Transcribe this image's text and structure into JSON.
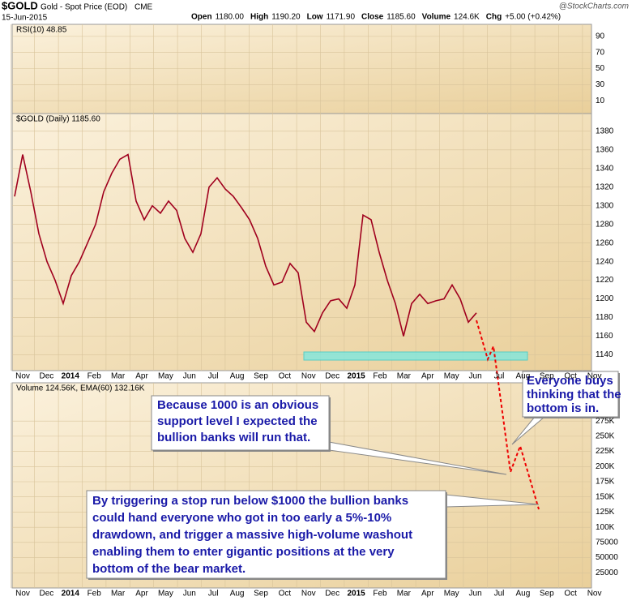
{
  "chart_data": {
    "type": "line",
    "symbol": "$GOLD",
    "title": "Gold - Spot Price (EOD)",
    "exchange": "CME",
    "date": "15-Jun-2015",
    "quote": [
      {
        "label": "Open",
        "value": "1180.00"
      },
      {
        "label": "High",
        "value": "1190.20"
      },
      {
        "label": "Low",
        "value": "1171.90"
      },
      {
        "label": "Close",
        "value": "1185.60"
      },
      {
        "label": "Volume",
        "value": "124.6K"
      },
      {
        "label": "Chg",
        "value": "+5.00 (+0.42%)"
      }
    ],
    "brand": "@StockCharts.com",
    "months": [
      "Nov",
      "Dec",
      "2014",
      "Feb",
      "Mar",
      "Apr",
      "May",
      "Jun",
      "Jul",
      "Aug",
      "Sep",
      "Oct",
      "Nov",
      "Dec",
      "2015",
      "Feb",
      "Mar",
      "Apr",
      "May",
      "Jun",
      "Jul",
      "Aug",
      "Sep",
      "Oct",
      "Nov"
    ],
    "rsi": {
      "legend": "RSI(10) 48.85",
      "ylim": [
        -6,
        105
      ],
      "yticks": [
        90,
        70,
        50,
        30,
        10
      ]
    },
    "price": {
      "legend": "$GOLD (Daily) 1185.60",
      "color": "#a0001e",
      "ylim": [
        1123,
        1399
      ],
      "yticks": [
        1380,
        1360,
        1340,
        1320,
        1300,
        1280,
        1260,
        1240,
        1220,
        1200,
        1180,
        1160,
        1140
      ],
      "values": [
        1310,
        1355,
        1315,
        1270,
        1240,
        1220,
        1195,
        1225,
        1240,
        1260,
        1280,
        1315,
        1335,
        1350,
        1355,
        1305,
        1285,
        1300,
        1292,
        1305,
        1295,
        1265,
        1250,
        1270,
        1320,
        1330,
        1318,
        1310,
        1298,
        1285,
        1265,
        1235,
        1215,
        1218,
        1238,
        1228,
        1175,
        1165,
        1185,
        1198,
        1200,
        1190,
        1215,
        1290,
        1285,
        1250,
        1220,
        1195,
        1160,
        1195,
        1205,
        1195,
        1198,
        1200,
        1215,
        1200,
        1175,
        1185
      ]
    },
    "volume": {
      "legend": "Volume 124.56K, EMA(60) 132.16K",
      "ylim": [
        0,
        338000
      ],
      "yticks": [
        {
          "value": 275000,
          "label": "275K"
        },
        {
          "value": 250000,
          "label": "250K"
        },
        {
          "value": 225000,
          "label": "225K"
        },
        {
          "value": 200000,
          "label": "200K"
        },
        {
          "value": 175000,
          "label": "175K"
        },
        {
          "value": 150000,
          "label": "150K"
        },
        {
          "value": 125000,
          "label": "125K"
        },
        {
          "value": 100000,
          "label": "100K"
        },
        75000,
        50000,
        25000
      ]
    },
    "annotations": [
      {
        "lines": [
          "Because 1000 is an obvious",
          "support level I expected the",
          "bullion banks will run that."
        ]
      },
      {
        "lines": [
          "Everyone buys",
          "thinking that the",
          "bottom is in."
        ]
      },
      {
        "lines": [
          "By triggering a stop run below $1000 the bullion banks",
          "could hand everyone who got in too early a 5%-10%",
          "drawdown, and trigger a massive high-volume washout",
          "enabling them to enter gigantic positions at the very",
          "bottom of the bear market."
        ]
      }
    ]
  }
}
